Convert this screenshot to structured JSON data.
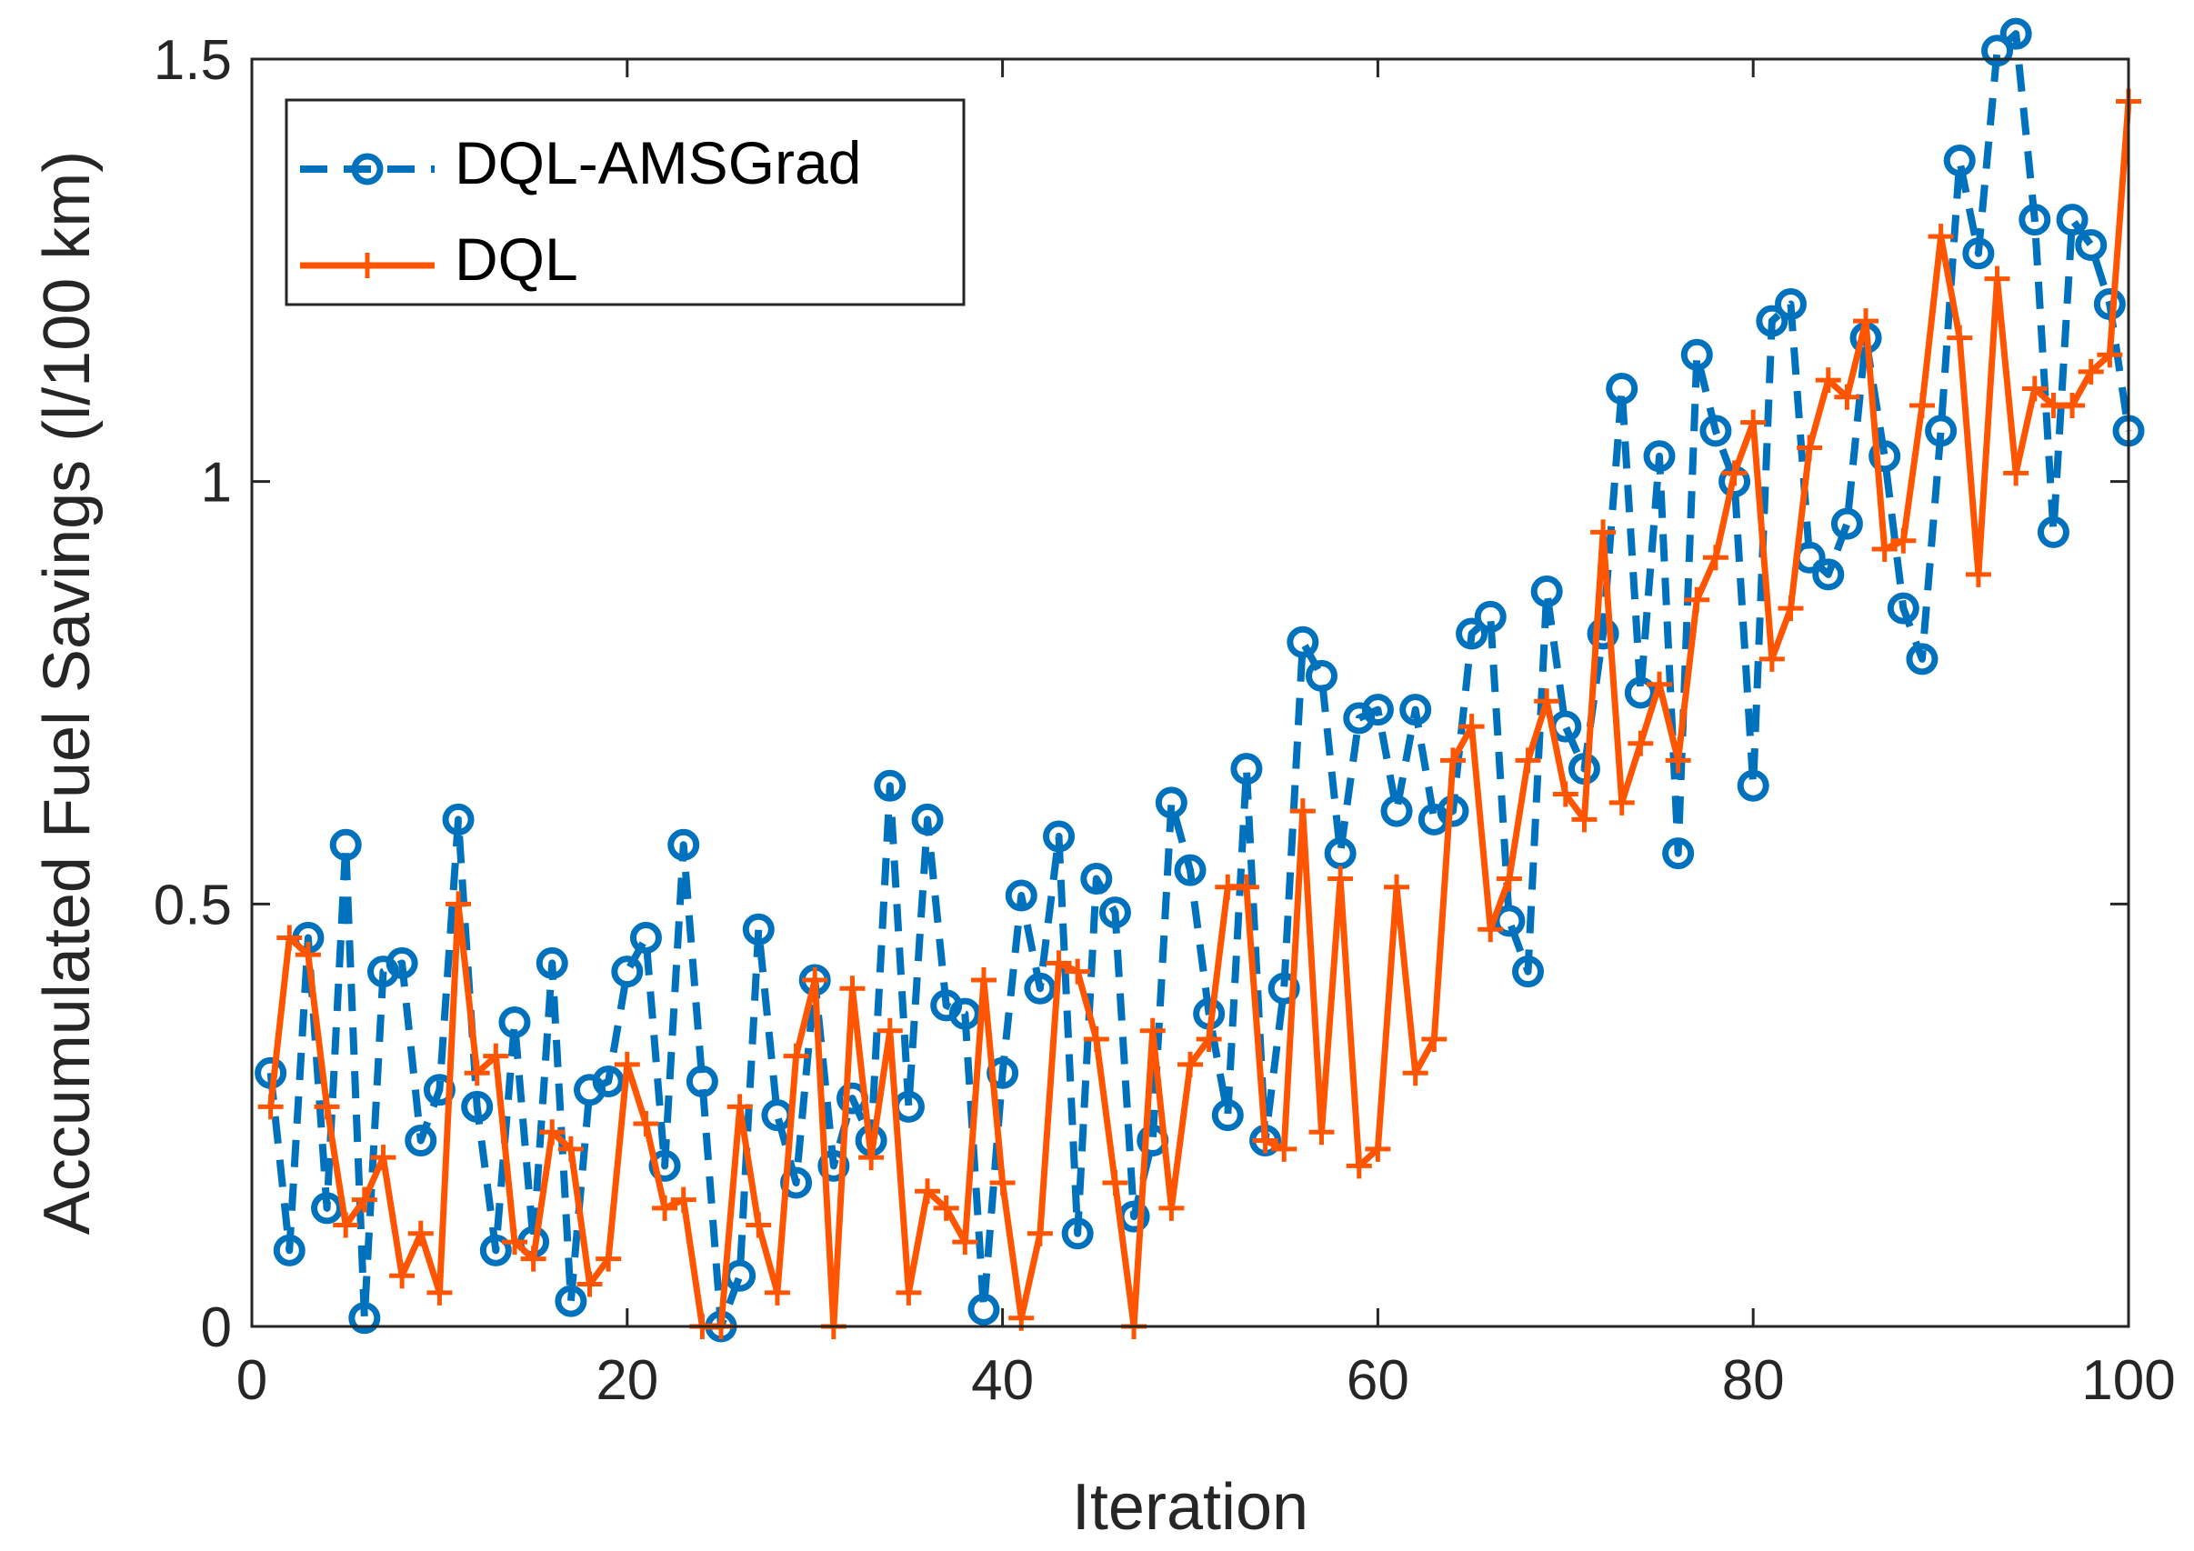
{
  "chart_data": {
    "type": "line",
    "title": "",
    "xlabel": "Iteration",
    "ylabel": "Accumulated Fuel Savings (l/100 km)",
    "xlim": [
      0,
      100
    ],
    "ylim": [
      0,
      1.5
    ],
    "xticks": [
      0,
      20,
      40,
      60,
      80,
      100
    ],
    "xtick_labels": [
      "0",
      "20",
      "40",
      "60",
      "80",
      "100"
    ],
    "yticks": [
      0,
      0.5,
      1,
      1.5
    ],
    "ytick_labels": [
      "0",
      "0.5",
      "1",
      "1.5"
    ],
    "grid": false,
    "legend_position": "top-left",
    "x": [
      1,
      2,
      3,
      4,
      5,
      6,
      7,
      8,
      9,
      10,
      11,
      12,
      13,
      14,
      15,
      16,
      17,
      18,
      19,
      20,
      21,
      22,
      23,
      24,
      25,
      26,
      27,
      28,
      29,
      30,
      31,
      32,
      33,
      34,
      35,
      36,
      37,
      38,
      39,
      40,
      41,
      42,
      43,
      44,
      45,
      46,
      47,
      48,
      49,
      50,
      51,
      52,
      53,
      54,
      55,
      56,
      57,
      58,
      59,
      60,
      61,
      62,
      63,
      64,
      65,
      66,
      67,
      68,
      69,
      70,
      71,
      72,
      73,
      74,
      75,
      76,
      77,
      78,
      79,
      80,
      81,
      82,
      83,
      84,
      85,
      86,
      87,
      88,
      89,
      90,
      91,
      92,
      93,
      94,
      95,
      96,
      97,
      98,
      99,
      100
    ],
    "series": [
      {
        "name": "DQL-AMSGrad",
        "color": "#0072bd",
        "line_style": "dashed",
        "marker": "circle",
        "values": [
          0.3,
          0.09,
          0.46,
          0.14,
          0.57,
          0.01,
          0.42,
          0.43,
          0.22,
          0.28,
          0.6,
          0.26,
          0.09,
          0.36,
          0.1,
          0.43,
          0.03,
          0.28,
          0.29,
          0.42,
          0.46,
          0.19,
          0.57,
          0.29,
          0.0,
          0.06,
          0.47,
          0.25,
          0.17,
          0.41,
          0.19,
          0.27,
          0.22,
          0.64,
          0.26,
          0.6,
          0.38,
          0.37,
          0.02,
          0.3,
          0.51,
          0.4,
          0.58,
          0.11,
          0.53,
          0.49,
          0.13,
          0.22,
          0.62,
          0.54,
          0.37,
          0.25,
          0.66,
          0.22,
          0.4,
          0.81,
          0.77,
          0.56,
          0.72,
          0.73,
          0.61,
          0.73,
          0.6,
          0.61,
          0.82,
          0.84,
          0.48,
          0.42,
          0.87,
          0.71,
          0.66,
          0.82,
          1.11,
          0.75,
          1.03,
          0.56,
          1.15,
          1.06,
          1.0,
          0.64,
          1.19,
          1.21,
          0.91,
          0.89,
          0.95,
          1.17,
          1.03,
          0.85,
          0.79,
          1.06,
          1.38,
          1.27,
          1.51,
          1.53,
          1.31,
          0.94,
          1.31,
          1.28,
          1.21,
          1.06
        ]
      },
      {
        "name": "DQL",
        "color": "#ff5500",
        "line_style": "solid",
        "marker": "plus",
        "values": [
          0.26,
          0.46,
          0.44,
          0.26,
          0.12,
          0.15,
          0.2,
          0.06,
          0.11,
          0.04,
          0.5,
          0.3,
          0.32,
          0.1,
          0.08,
          0.23,
          0.21,
          0.05,
          0.08,
          0.31,
          0.24,
          0.14,
          0.15,
          0.0,
          0.0,
          0.26,
          0.12,
          0.04,
          0.32,
          0.41,
          0.0,
          0.4,
          0.2,
          0.35,
          0.04,
          0.16,
          0.14,
          0.1,
          0.41,
          0.17,
          0.01,
          0.11,
          0.43,
          0.42,
          0.34,
          0.17,
          0.0,
          0.35,
          0.14,
          0.31,
          0.34,
          0.52,
          0.52,
          0.22,
          0.21,
          0.61,
          0.23,
          0.53,
          0.19,
          0.21,
          0.52,
          0.3,
          0.34,
          0.67,
          0.71,
          0.47,
          0.53,
          0.67,
          0.74,
          0.63,
          0.6,
          0.94,
          0.62,
          0.69,
          0.76,
          0.67,
          0.86,
          0.91,
          1.01,
          1.07,
          0.79,
          0.85,
          1.04,
          1.12,
          1.1,
          1.19,
          0.92,
          0.93,
          1.09,
          1.29,
          1.17,
          0.89,
          1.24,
          1.01,
          1.11,
          1.09,
          1.09,
          1.13,
          1.15,
          1.45
        ]
      }
    ]
  }
}
